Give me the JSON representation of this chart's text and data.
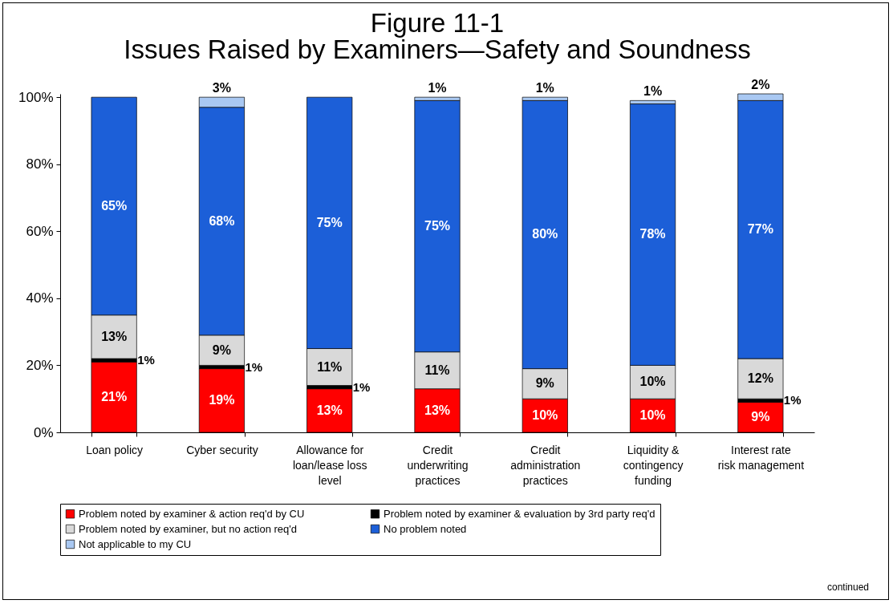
{
  "chart_data": {
    "type": "bar",
    "stacked": true,
    "legend": "bottom",
    "grid": false,
    "title": "Figure 11-1",
    "subtitle": "Issues Raised by Examiners—Safety and Soundness",
    "categories": [
      "Loan policy",
      "Cyber security",
      "Allowance for loan/lease loss level",
      "Credit underwriting practices",
      "Credit administration practices",
      "Liquidity & contingency funding",
      "Interest rate risk management"
    ],
    "ylim": [
      0,
      101
    ],
    "yticks": [
      {
        "value": 0,
        "label": "0%"
      },
      {
        "value": 20,
        "label": "20%"
      },
      {
        "value": 40,
        "label": "40%"
      },
      {
        "value": 60,
        "label": "60%"
      },
      {
        "value": 80,
        "label": "80%"
      },
      {
        "value": 100,
        "label": "100%"
      }
    ],
    "series": [
      {
        "name": "Problem noted by examiner & action req'd by CU",
        "color": "#ff0000",
        "values": [
          21,
          19,
          13,
          13,
          10,
          10,
          9
        ],
        "value_labels": [
          "21%",
          "19%",
          "13%",
          "13%",
          "10%",
          "10%",
          "9%"
        ]
      },
      {
        "name": "Problem noted by examiner & evaluation by 3rd party req'd",
        "color": "#000000",
        "values": [
          1,
          1,
          1,
          null,
          null,
          null,
          1
        ],
        "value_labels": [
          "1%",
          "1%",
          "1%",
          null,
          null,
          null,
          "1%"
        ]
      },
      {
        "name": "Problem noted by examiner, but no action req'd",
        "color": "#d9d9d9",
        "values": [
          13,
          9,
          11,
          11,
          9,
          10,
          12
        ],
        "value_labels": [
          "13%",
          "9%",
          "11%",
          "11%",
          "9%",
          "10%",
          "12%"
        ]
      },
      {
        "name": "No problem noted",
        "color": "#1c5fd8",
        "values": [
          65,
          68,
          75,
          75,
          80,
          78,
          77
        ],
        "value_labels": [
          "65%",
          "68%",
          "75%",
          "75%",
          "80%",
          "78%",
          "77%"
        ]
      },
      {
        "name": "Not applicable to my CU",
        "color": "#a9c8f2",
        "values": [
          null,
          3,
          null,
          1,
          1,
          1,
          2
        ],
        "value_labels": [
          null,
          "3%",
          null,
          "1%",
          "1%",
          "1%",
          "2%"
        ]
      }
    ],
    "annotations": [
      "continued"
    ]
  }
}
